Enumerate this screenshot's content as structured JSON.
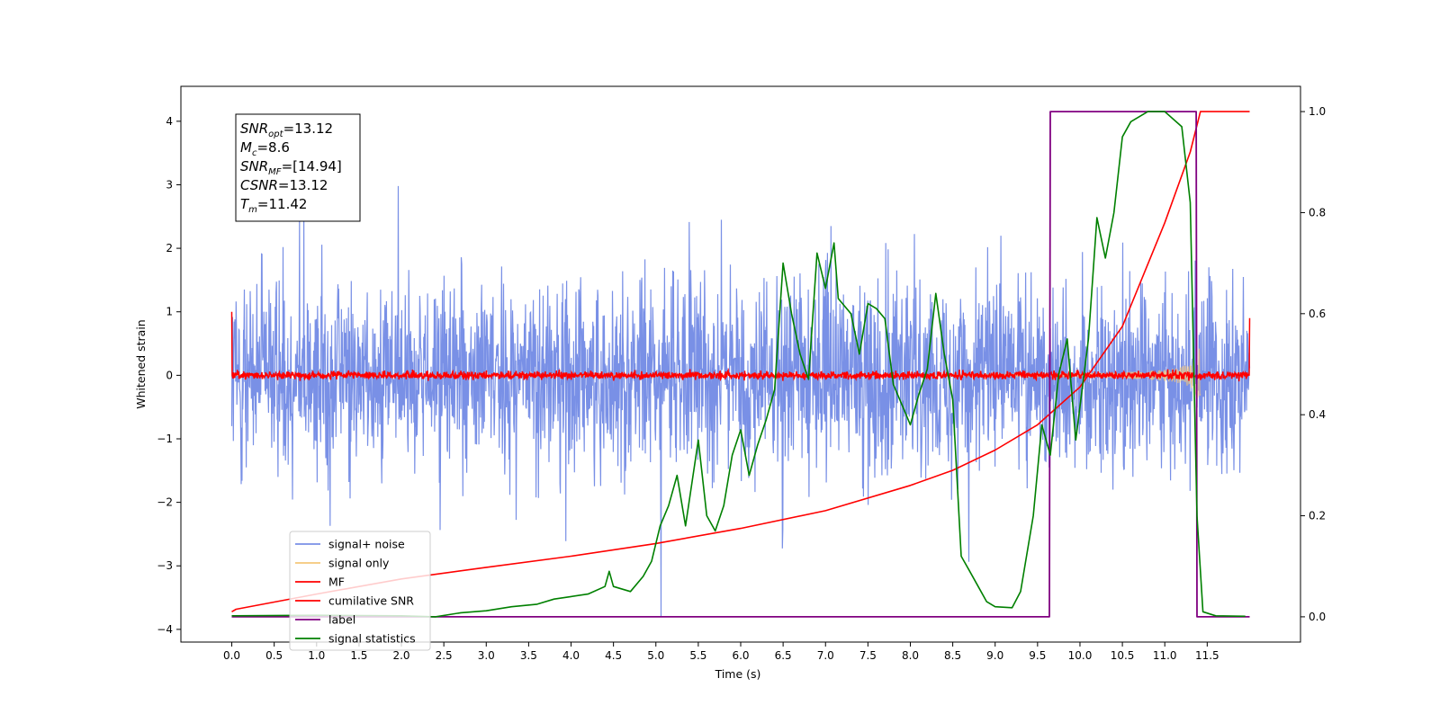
{
  "chart_data": {
    "type": "line",
    "xlabel": "Time (s)",
    "ylabel": "Whitened strain",
    "xlim": [
      -0.6,
      12.6
    ],
    "ylim": [
      -4.2,
      4.55
    ],
    "y2lim": [
      -0.05,
      1.05
    ],
    "xticks": [
      "0.0",
      "0.5",
      "1.0",
      "1.5",
      "2.0",
      "2.5",
      "3.0",
      "3.5",
      "4.0",
      "4.5",
      "5.0",
      "5.5",
      "6.0",
      "6.5",
      "7.0",
      "7.5",
      "8.0",
      "8.5",
      "9.0",
      "9.5",
      "10.0",
      "10.5",
      "11.0",
      "11.5"
    ],
    "yticks": [
      "4",
      "3",
      "2",
      "1",
      "0",
      "−1",
      "−2",
      "−3",
      "−4"
    ],
    "y2ticks": [
      "1.0",
      "0.8",
      "0.6",
      "0.4",
      "0.2",
      "0.0"
    ],
    "grid": false,
    "legend_position": "lower-left",
    "info_box": {
      "lines": [
        {
          "main": "SNR",
          "sub": "opt",
          "value": "=13.12"
        },
        {
          "main": "M",
          "sub": "c",
          "value": "=8.6"
        },
        {
          "main": "SNR",
          "sub": "MF",
          "value": "=[14.94]"
        },
        {
          "main": "CSNR",
          "sub": "",
          "value": "=13.12"
        },
        {
          "main": "T",
          "sub": "m",
          "value": "=11.42"
        }
      ]
    },
    "series": [
      {
        "name": "signal+ noise",
        "color": "#7990e6",
        "axis": "left",
        "kind": "noise",
        "x_range": [
          0,
          12
        ],
        "envelope_typical": 1.05,
        "spikes_max": 3.8,
        "spikes_min": -3.8
      },
      {
        "name": "signal only",
        "color": "#f5c77a",
        "axis": "left",
        "kind": "chirp",
        "x_range": [
          0,
          11.42
        ],
        "peak_amplitude": 0.82
      },
      {
        "name": "MF",
        "color": "#ff0000",
        "axis": "left",
        "kind": "noise",
        "x_range": [
          0,
          12
        ],
        "amplitude": 0.08,
        "end_values": [
          1.0,
          0.9
        ]
      },
      {
        "name": "cumilative SNR",
        "color": "#ff0000",
        "axis": "right",
        "x": [
          0,
          0.05,
          1,
          2,
          3,
          4,
          5,
          6,
          7,
          8,
          8.5,
          9,
          9.5,
          10,
          10.5,
          11,
          11.3,
          11.42,
          11.45,
          12
        ],
        "values": [
          0.01,
          0.015,
          0.045,
          0.075,
          0.098,
          0.12,
          0.145,
          0.175,
          0.21,
          0.26,
          0.29,
          0.33,
          0.38,
          0.455,
          0.575,
          0.78,
          0.92,
          1.0,
          1.0,
          1.0
        ]
      },
      {
        "name": "label",
        "color": "#800080",
        "axis": "right",
        "x": [
          0,
          9.64,
          9.65,
          11.37,
          11.38,
          12
        ],
        "values": [
          0,
          0,
          1,
          1,
          0,
          0
        ]
      },
      {
        "name": "signal statistics",
        "color": "#008000",
        "axis": "right",
        "x": [
          0,
          1,
          2,
          2.4,
          2.7,
          3.0,
          3.3,
          3.6,
          3.8,
          4.0,
          4.2,
          4.4,
          4.45,
          4.5,
          4.7,
          4.85,
          4.95,
          5.05,
          5.15,
          5.25,
          5.35,
          5.5,
          5.6,
          5.7,
          5.8,
          5.9,
          6.0,
          6.1,
          6.2,
          6.3,
          6.4,
          6.5,
          6.6,
          6.7,
          6.8,
          6.9,
          7.0,
          7.1,
          7.15,
          7.2,
          7.3,
          7.4,
          7.5,
          7.6,
          7.7,
          7.8,
          7.9,
          8.0,
          8.1,
          8.2,
          8.3,
          8.4,
          8.5,
          8.6,
          8.7,
          8.8,
          8.9,
          9.0,
          9.2,
          9.3,
          9.45,
          9.55,
          9.65,
          9.75,
          9.85,
          9.95,
          10.1,
          10.2,
          10.3,
          10.4,
          10.5,
          10.6,
          10.8,
          11.0,
          11.2,
          11.3,
          11.38,
          11.45,
          11.6,
          11.95
        ],
        "values": [
          0.002,
          0.003,
          0.002,
          0.0,
          0.008,
          0.012,
          0.02,
          0.025,
          0.035,
          0.04,
          0.045,
          0.06,
          0.09,
          0.06,
          0.05,
          0.08,
          0.11,
          0.18,
          0.22,
          0.28,
          0.18,
          0.35,
          0.2,
          0.17,
          0.22,
          0.32,
          0.37,
          0.28,
          0.34,
          0.39,
          0.45,
          0.7,
          0.6,
          0.52,
          0.47,
          0.72,
          0.65,
          0.74,
          0.63,
          0.62,
          0.6,
          0.52,
          0.62,
          0.61,
          0.59,
          0.46,
          0.42,
          0.38,
          0.44,
          0.49,
          0.64,
          0.52,
          0.43,
          0.12,
          0.09,
          0.06,
          0.03,
          0.02,
          0.018,
          0.05,
          0.2,
          0.38,
          0.32,
          0.48,
          0.55,
          0.35,
          0.55,
          0.79,
          0.71,
          0.8,
          0.95,
          0.98,
          1.0,
          1.0,
          0.97,
          0.82,
          0.2,
          0.01,
          0.002,
          0.001
        ]
      }
    ]
  }
}
